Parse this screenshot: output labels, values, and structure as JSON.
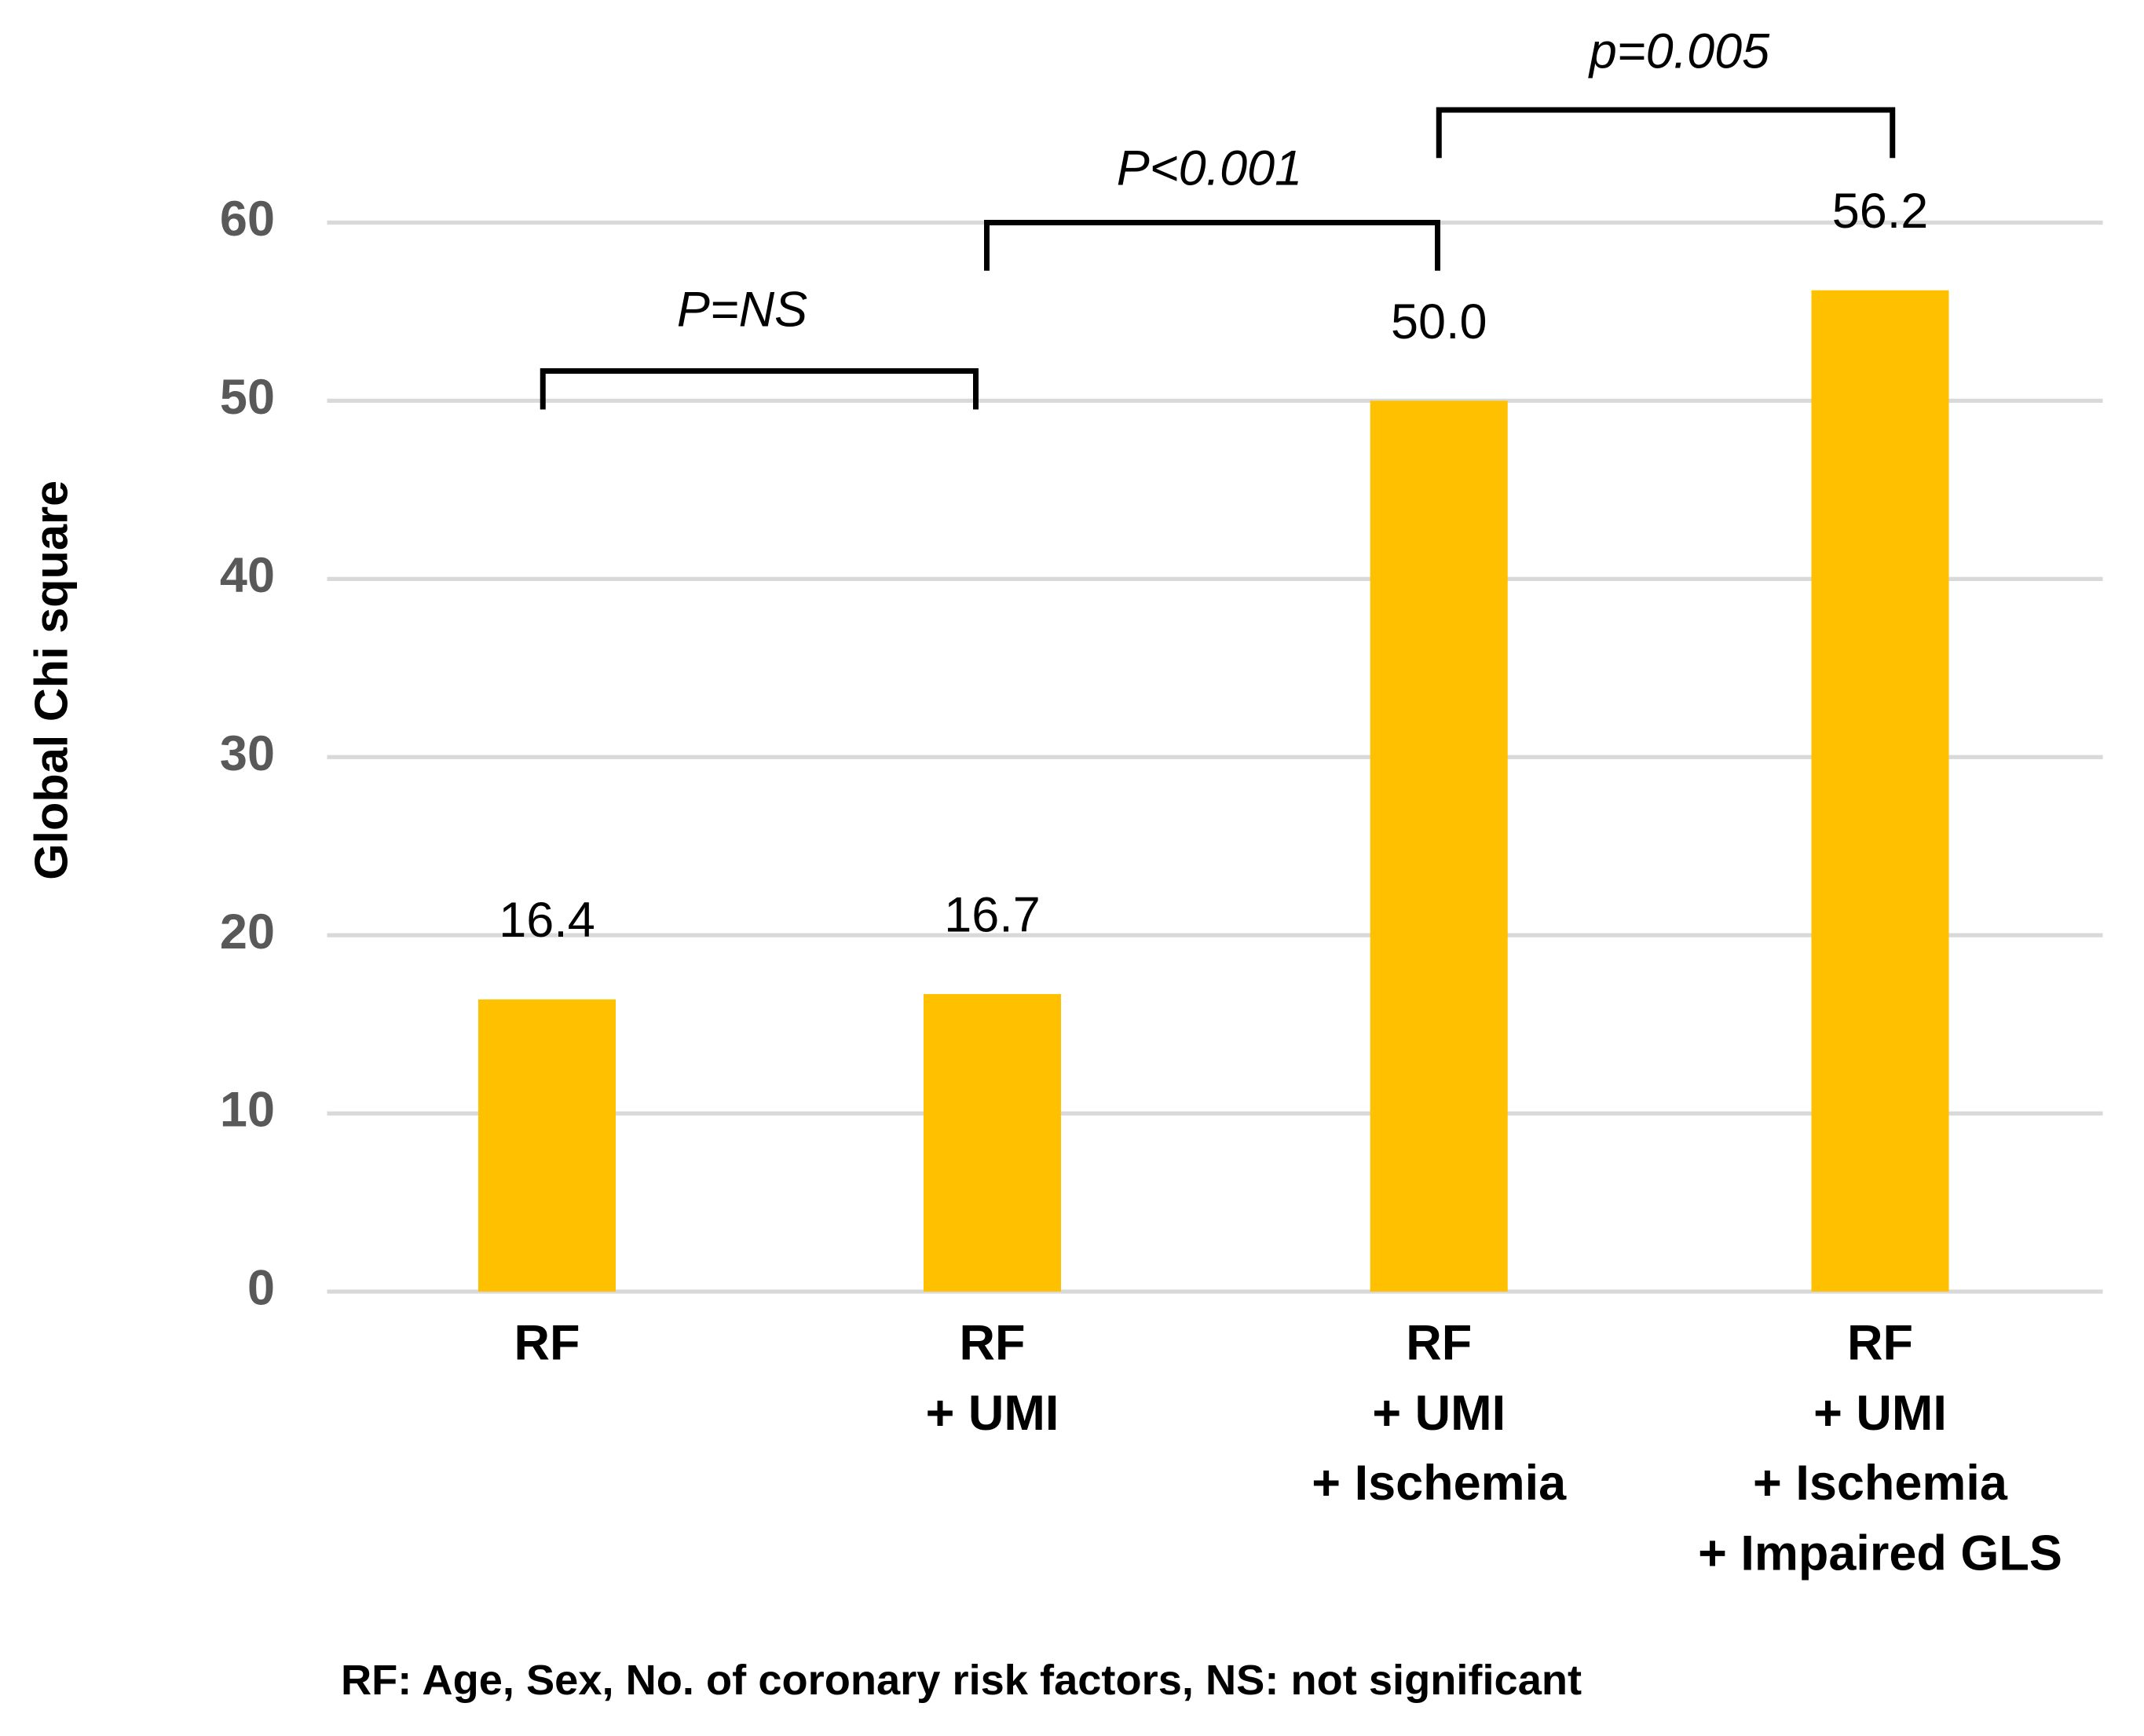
{
  "chart_data": {
    "type": "bar",
    "y_label": "Global Chi square",
    "categories": [
      [
        "RF"
      ],
      [
        "RF",
        "+ UMI"
      ],
      [
        "RF",
        "+ UMI",
        "+ Ischemia"
      ],
      [
        "RF",
        "+ UMI",
        "+ Ischemia",
        "+ Impaired GLS"
      ]
    ],
    "values": [
      16.4,
      16.7,
      50.0,
      56.2
    ],
    "value_labels": [
      "16.4",
      "16.7",
      "50.0",
      "56.2"
    ],
    "color": "#FFC000",
    "ylim": [
      0,
      60
    ],
    "yticks": [
      0,
      10,
      20,
      30,
      40,
      50,
      60
    ],
    "grid": true,
    "annotations": [
      "P=NS",
      "P<0.001",
      "p=0.005"
    ],
    "footnote": "RF: Age, Sex, No. of coronary risk factors, NS: not significant"
  }
}
